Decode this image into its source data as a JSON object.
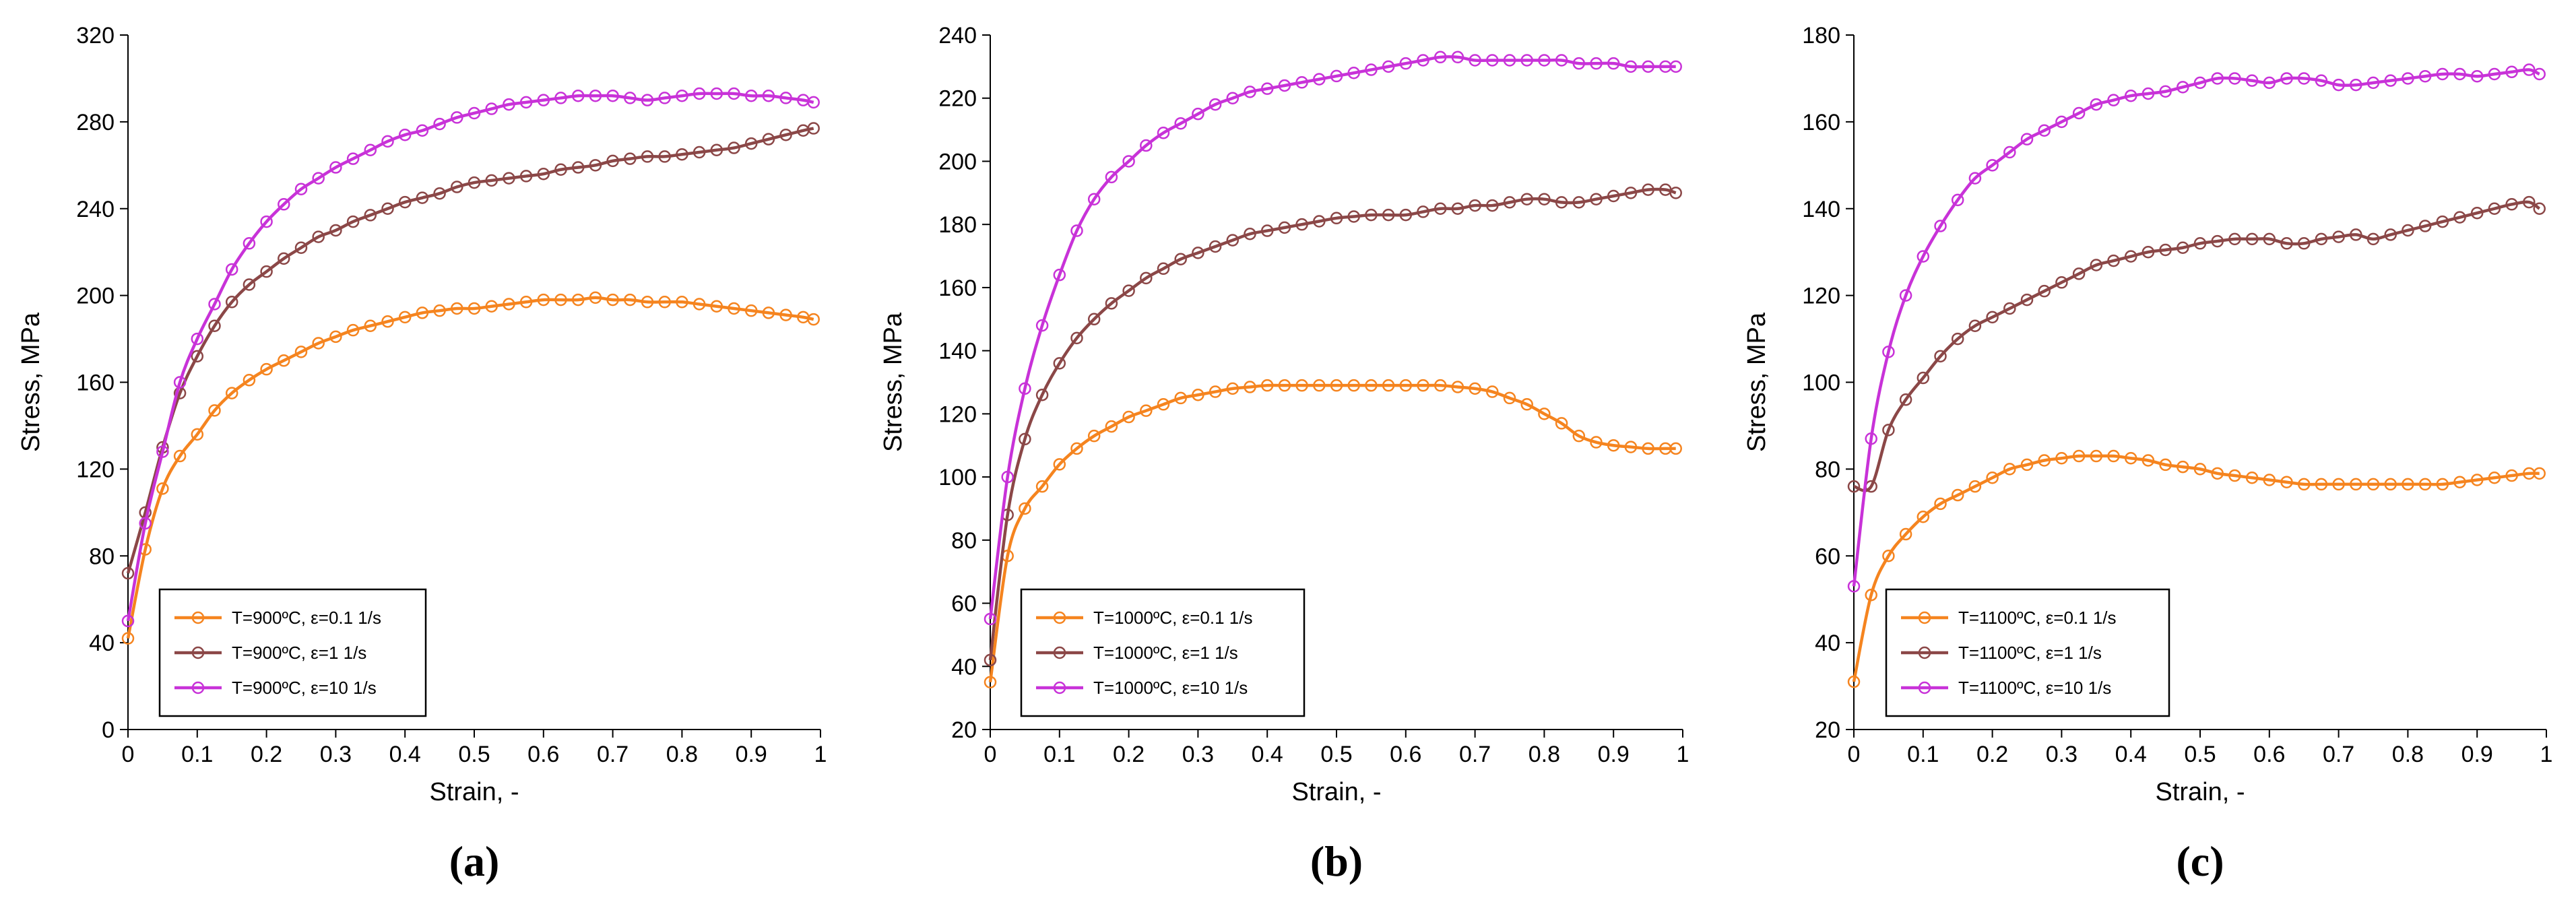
{
  "chart_data": [
    {
      "id": "a",
      "type": "line",
      "panel_label": "(a)",
      "xlabel": "Strain, -",
      "ylabel": "Stress, MPa",
      "xlim": [
        0,
        1
      ],
      "ylim": [
        0,
        320
      ],
      "xticks": [
        "0",
        "0.1",
        "0.2",
        "0.3",
        "0.4",
        "0.5",
        "0.6",
        "0.7",
        "0.8",
        "0.9",
        "1"
      ],
      "yticks": [
        "0",
        "40",
        "80",
        "120",
        "160",
        "200",
        "240",
        "280",
        "320"
      ],
      "legend_position": "bottom-left",
      "x": [
        0,
        0.025,
        0.05,
        0.075,
        0.1,
        0.125,
        0.15,
        0.175,
        0.2,
        0.225,
        0.25,
        0.275,
        0.3,
        0.325,
        0.35,
        0.375,
        0.4,
        0.425,
        0.45,
        0.475,
        0.5,
        0.525,
        0.55,
        0.575,
        0.6,
        0.625,
        0.65,
        0.675,
        0.7,
        0.725,
        0.75,
        0.775,
        0.8,
        0.825,
        0.85,
        0.875,
        0.9,
        0.925,
        0.95,
        0.975,
        0.99
      ],
      "series": [
        {
          "name": "T=900ºC, ε=0.1 1/s",
          "color": "#F5841F",
          "values": [
            42,
            83,
            111,
            126,
            136,
            147,
            155,
            161,
            166,
            170,
            174,
            178,
            181,
            184,
            186,
            188,
            190,
            192,
            193,
            194,
            194,
            195,
            196,
            197,
            198,
            198,
            198,
            199,
            198,
            198,
            197,
            197,
            197,
            196,
            195,
            194,
            193,
            192,
            191,
            190,
            189
          ]
        },
        {
          "name": "T=900ºC, ε=1 1/s",
          "color": "#8B4747",
          "values": [
            72,
            100,
            130,
            155,
            172,
            186,
            197,
            205,
            211,
            217,
            222,
            227,
            230,
            234,
            237,
            240,
            243,
            245,
            247,
            250,
            252,
            253,
            254,
            255,
            256,
            258,
            259,
            260,
            262,
            263,
            264,
            264,
            265,
            266,
            267,
            268,
            270,
            272,
            274,
            276,
            277
          ]
        },
        {
          "name": "T=900ºC, ε=10 1/s",
          "color": "#C832D8",
          "values": [
            50,
            95,
            128,
            160,
            180,
            196,
            212,
            224,
            234,
            242,
            249,
            254,
            259,
            263,
            267,
            271,
            274,
            276,
            279,
            282,
            284,
            286,
            288,
            289,
            290,
            291,
            292,
            292,
            292,
            291,
            290,
            291,
            292,
            293,
            293,
            293,
            292,
            292,
            291,
            290,
            289
          ]
        }
      ]
    },
    {
      "id": "b",
      "type": "line",
      "panel_label": "(b)",
      "xlabel": "Strain, -",
      "ylabel": "Stress, MPa",
      "xlim": [
        0,
        1
      ],
      "ylim": [
        20,
        240
      ],
      "xticks": [
        "0",
        "0.1",
        "0.2",
        "0.3",
        "0.4",
        "0.5",
        "0.6",
        "0.7",
        "0.8",
        "0.9",
        "1"
      ],
      "yticks": [
        "20",
        "40",
        "60",
        "80",
        "100",
        "120",
        "140",
        "160",
        "180",
        "200",
        "220",
        "240"
      ],
      "legend_position": "bottom-left",
      "x": [
        0,
        0.025,
        0.05,
        0.075,
        0.1,
        0.125,
        0.15,
        0.175,
        0.2,
        0.225,
        0.25,
        0.275,
        0.3,
        0.325,
        0.35,
        0.375,
        0.4,
        0.425,
        0.45,
        0.475,
        0.5,
        0.525,
        0.55,
        0.575,
        0.6,
        0.625,
        0.65,
        0.675,
        0.7,
        0.725,
        0.75,
        0.775,
        0.8,
        0.825,
        0.85,
        0.875,
        0.9,
        0.925,
        0.95,
        0.975,
        0.99
      ],
      "series": [
        {
          "name": "T=1000ºC, ε=0.1 1/s",
          "color": "#F5841F",
          "values": [
            35,
            75,
            90,
            97,
            104,
            109,
            113,
            116,
            119,
            121,
            123,
            125,
            126,
            127,
            128,
            128.5,
            129,
            129,
            129,
            129,
            129,
            129,
            129,
            129,
            129,
            129,
            129,
            128.5,
            128,
            127,
            125,
            123,
            120,
            117,
            113,
            111,
            110,
            109.5,
            109,
            109,
            109
          ]
        },
        {
          "name": "T=1000ºC, ε=1 1/s",
          "color": "#8B4747",
          "values": [
            42,
            88,
            112,
            126,
            136,
            144,
            150,
            155,
            159,
            163,
            166,
            169,
            171,
            173,
            175,
            177,
            178,
            179,
            180,
            181,
            182,
            182.5,
            183,
            183,
            183,
            184,
            185,
            185,
            186,
            186,
            187,
            188,
            188,
            187,
            187,
            188,
            189,
            190,
            191,
            191,
            190
          ]
        },
        {
          "name": "T=1000ºC, ε=10 1/s",
          "color": "#C832D8",
          "values": [
            55,
            100,
            128,
            148,
            164,
            178,
            188,
            195,
            200,
            205,
            209,
            212,
            215,
            218,
            220,
            222,
            223,
            224,
            225,
            226,
            227,
            228,
            229,
            230,
            231,
            232,
            233,
            233,
            232,
            232,
            232,
            232,
            232,
            232,
            231,
            231,
            231,
            230,
            230,
            230,
            230
          ]
        }
      ]
    },
    {
      "id": "c",
      "type": "line",
      "panel_label": "(c)",
      "xlabel": "Strain, -",
      "ylabel": "Stress, MPa",
      "xlim": [
        0,
        1
      ],
      "ylim": [
        20,
        180
      ],
      "xticks": [
        "0",
        "0.1",
        "0.2",
        "0.3",
        "0.4",
        "0.5",
        "0.6",
        "0.7",
        "0.8",
        "0.9",
        "1"
      ],
      "yticks": [
        "20",
        "40",
        "60",
        "80",
        "100",
        "120",
        "140",
        "160",
        "180"
      ],
      "legend_position": "bottom-left",
      "x": [
        0,
        0.025,
        0.05,
        0.075,
        0.1,
        0.125,
        0.15,
        0.175,
        0.2,
        0.225,
        0.25,
        0.275,
        0.3,
        0.325,
        0.35,
        0.375,
        0.4,
        0.425,
        0.45,
        0.475,
        0.5,
        0.525,
        0.55,
        0.575,
        0.6,
        0.625,
        0.65,
        0.675,
        0.7,
        0.725,
        0.75,
        0.775,
        0.8,
        0.825,
        0.85,
        0.875,
        0.9,
        0.925,
        0.95,
        0.975,
        0.99
      ],
      "series": [
        {
          "name": "T=1100ºC, ε=0.1 1/s",
          "color": "#F5841F",
          "values": [
            31,
            51,
            60,
            65,
            69,
            72,
            74,
            76,
            78,
            80,
            81,
            82,
            82.5,
            83,
            83,
            83,
            82.5,
            82,
            81,
            80.5,
            80,
            79,
            78.5,
            78,
            77.5,
            77,
            76.5,
            76.5,
            76.5,
            76.5,
            76.5,
            76.5,
            76.5,
            76.5,
            76.5,
            77,
            77.5,
            78,
            78.5,
            79,
            79
          ]
        },
        {
          "name": "T=1100ºC, ε=1 1/s",
          "color": "#8B4747",
          "values": [
            76,
            76,
            89,
            96,
            101,
            106,
            110,
            113,
            115,
            117,
            119,
            121,
            123,
            125,
            127,
            128,
            129,
            130,
            130.5,
            131,
            132,
            132.5,
            133,
            133,
            133,
            132,
            132,
            133,
            133.5,
            134,
            133,
            134,
            135,
            136,
            137,
            138,
            139,
            140,
            141,
            141.5,
            140
          ]
        },
        {
          "name": "T=1100ºC, ε=10 1/s",
          "color": "#C832D8",
          "values": [
            53,
            87,
            107,
            120,
            129,
            136,
            142,
            147,
            150,
            153,
            156,
            158,
            160,
            162,
            164,
            165,
            166,
            166.5,
            167,
            168,
            169,
            170,
            170,
            169.5,
            169,
            170,
            170,
            169.5,
            168.5,
            168.5,
            169,
            169.5,
            170,
            170.5,
            171,
            171,
            170.5,
            171,
            171.5,
            172,
            171
          ]
        }
      ]
    }
  ]
}
